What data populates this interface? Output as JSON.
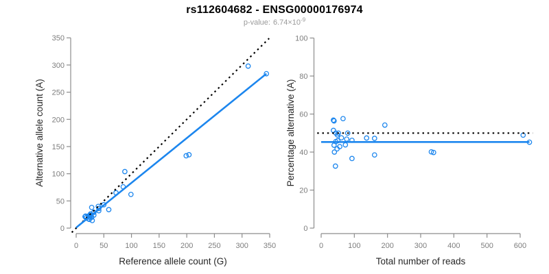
{
  "header": {
    "title": "rs112604682 - ENSG00000176974",
    "pvalue_label": "p-value:",
    "pvalue_base": "6.74×10",
    "pvalue_exponent": "-9"
  },
  "colors": {
    "point_blue": "#1C86EE",
    "fit_line_blue": "#1C86EE",
    "reference_line_black": "#000000",
    "axis_gray": "#8c8c8c",
    "tick_text_gray": "#7d7d7d",
    "subtitle_gray": "#999999"
  },
  "chart_data": [
    {
      "type": "scatter",
      "name": "allele-counts",
      "xlabel": "Reference allele count (G)",
      "ylabel": "Alternative allele count (A)",
      "xlim": [
        0,
        350
      ],
      "ylim": [
        0,
        350
      ],
      "x_ticks": [
        0,
        50,
        100,
        150,
        200,
        250,
        300,
        350
      ],
      "y_ticks": [
        0,
        50,
        100,
        150,
        200,
        250,
        300,
        350
      ],
      "grid": false,
      "points": [
        [
          17,
          22
        ],
        [
          16,
          21
        ],
        [
          28,
          38
        ],
        [
          88,
          104
        ],
        [
          18,
          19
        ],
        [
          22,
          22
        ],
        [
          25,
          24
        ],
        [
          26,
          26
        ],
        [
          40,
          40
        ],
        [
          27,
          23
        ],
        [
          32,
          29
        ],
        [
          41,
          36
        ],
        [
          50,
          43
        ],
        [
          24,
          20
        ],
        [
          22,
          17
        ],
        [
          28,
          20
        ],
        [
          32,
          24
        ],
        [
          41,
          32
        ],
        [
          24,
          16
        ],
        [
          59,
          34
        ],
        [
          29,
          14
        ],
        [
          72,
          65
        ],
        [
          85,
          76
        ],
        [
          99,
          62
        ],
        [
          199,
          133
        ],
        [
          204,
          135
        ],
        [
          311,
          298
        ],
        [
          344,
          284
        ]
      ],
      "lines": [
        {
          "style": "dotted",
          "color": "#000000",
          "from": [
            -8,
            -8
          ],
          "to": [
            349,
            349
          ]
        },
        {
          "style": "solid",
          "color": "#1C86EE",
          "from": [
            0,
            1
          ],
          "to": [
            344,
            284
          ]
        }
      ]
    },
    {
      "type": "scatter",
      "name": "percentage-alternative",
      "xlabel": "Total number of reads",
      "ylabel": "Percentage alternative (A)",
      "xlim": [
        0,
        600
      ],
      "ylim": [
        0,
        100
      ],
      "x_ticks": [
        0,
        100,
        200,
        300,
        400,
        500,
        600
      ],
      "y_ticks": [
        0,
        20,
        40,
        60,
        80,
        100
      ],
      "grid": false,
      "points": [
        [
          39,
          56.4
        ],
        [
          37,
          56.8
        ],
        [
          66,
          57.6
        ],
        [
          192,
          54.2
        ],
        [
          37,
          51.4
        ],
        [
          44,
          50.0
        ],
        [
          49,
          49.0
        ],
        [
          52,
          50.0
        ],
        [
          80,
          50.0
        ],
        [
          50,
          46.0
        ],
        [
          61,
          47.5
        ],
        [
          77,
          46.8
        ],
        [
          93,
          46.2
        ],
        [
          44,
          45.5
        ],
        [
          39,
          43.6
        ],
        [
          48,
          41.7
        ],
        [
          56,
          42.9
        ],
        [
          73,
          43.8
        ],
        [
          40,
          40.0
        ],
        [
          93,
          36.6
        ],
        [
          43,
          32.6
        ],
        [
          137,
          47.4
        ],
        [
          161,
          47.2
        ],
        [
          161,
          38.5
        ],
        [
          332,
          40.1
        ],
        [
          339,
          39.8
        ],
        [
          609,
          48.9
        ],
        [
          628,
          45.2
        ]
      ],
      "lines": [
        {
          "style": "dotted",
          "color": "#000000",
          "from": [
            -12,
            50
          ],
          "to": [
            638,
            50
          ]
        },
        {
          "style": "solid",
          "color": "#1C86EE",
          "from": [
            0,
            45.3
          ],
          "to": [
            628,
            45.3
          ]
        }
      ]
    }
  ]
}
